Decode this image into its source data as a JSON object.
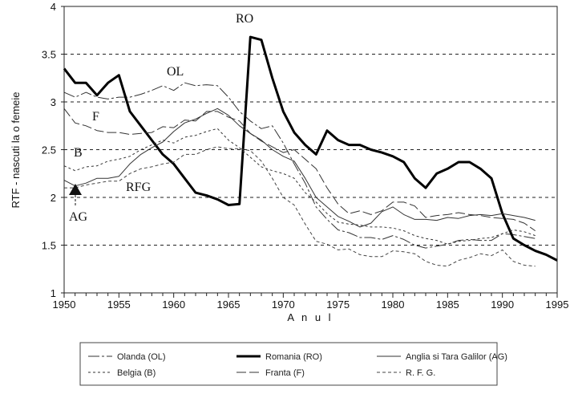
{
  "chart_data": {
    "type": "line",
    "title": "",
    "xlabel": "A n u l",
    "ylabel": "RTF - nascuti la o femeie",
    "xlim": [
      1950,
      1995
    ],
    "ylim": [
      1,
      4
    ],
    "x_ticks": [
      "1950",
      "1955",
      "1960",
      "1965",
      "1970",
      "1975",
      "1980",
      "1985",
      "1990",
      "1995"
    ],
    "y_ticks": [
      "1",
      "1.5",
      "2",
      "2.5",
      "3",
      "3.5",
      "4"
    ],
    "grid": "horizontal dashed",
    "legend_position": "bottom",
    "x_start": 1950,
    "series": [
      {
        "name": "Olanda (OL)",
        "label": "OL",
        "style": "dashlong",
        "values": [
          3.1,
          3.05,
          3.1,
          3.05,
          3.03,
          3.05,
          3.05,
          3.08,
          3.12,
          3.17,
          3.12,
          3.2,
          3.17,
          3.18,
          3.17,
          3.05,
          2.9,
          2.8,
          2.72,
          2.75,
          2.57,
          2.35,
          2.15,
          1.9,
          1.77,
          1.66,
          1.63,
          1.58,
          1.58,
          1.56,
          1.6,
          1.56,
          1.5,
          1.47,
          1.49,
          1.51,
          1.55,
          1.56,
          1.55,
          1.55,
          1.62,
          1.61,
          1.59,
          1.57
        ]
      },
      {
        "name": "Romania (RO)",
        "label": "RO",
        "style": "thick",
        "values": [
          3.35,
          3.2,
          3.2,
          3.07,
          3.2,
          3.28,
          2.9,
          2.75,
          2.6,
          2.45,
          2.35,
          2.2,
          2.05,
          2.02,
          1.98,
          1.92,
          1.93,
          3.68,
          3.65,
          3.25,
          2.9,
          2.68,
          2.55,
          2.45,
          2.7,
          2.6,
          2.55,
          2.55,
          2.5,
          2.47,
          2.43,
          2.37,
          2.2,
          2.1,
          2.25,
          2.3,
          2.37,
          2.37,
          2.3,
          2.2,
          1.83,
          1.57,
          1.5,
          1.44,
          1.4,
          1.34
        ]
      },
      {
        "name": "Anglia si Tara Galilor (AG)",
        "label": "AG",
        "style": "solid",
        "values": [
          2.18,
          2.12,
          2.15,
          2.2,
          2.2,
          2.22,
          2.35,
          2.45,
          2.52,
          2.58,
          2.69,
          2.78,
          2.82,
          2.88,
          2.93,
          2.86,
          2.75,
          2.67,
          2.6,
          2.5,
          2.43,
          2.38,
          2.2,
          2.0,
          1.9,
          1.8,
          1.75,
          1.69,
          1.73,
          1.85,
          1.9,
          1.82,
          1.77,
          1.77,
          1.76,
          1.79,
          1.78,
          1.81,
          1.82,
          1.81,
          1.83,
          1.81,
          1.79,
          1.76
        ]
      },
      {
        "name": "Belgia (B)",
        "label": "B",
        "style": "dotted",
        "values": [
          2.33,
          2.28,
          2.32,
          2.33,
          2.38,
          2.4,
          2.43,
          2.5,
          2.55,
          2.6,
          2.57,
          2.63,
          2.65,
          2.69,
          2.72,
          2.6,
          2.52,
          2.42,
          2.32,
          2.28,
          2.25,
          2.2,
          2.05,
          1.95,
          1.83,
          1.74,
          1.72,
          1.71,
          1.69,
          1.69,
          1.68,
          1.65,
          1.6,
          1.57,
          1.55,
          1.51,
          1.54,
          1.55,
          1.57,
          1.58,
          1.62,
          1.66,
          1.64,
          1.6
        ]
      },
      {
        "name": "Franta (F)",
        "label": "F",
        "style": "dashlong2",
        "values": [
          2.93,
          2.78,
          2.75,
          2.7,
          2.68,
          2.68,
          2.66,
          2.67,
          2.68,
          2.74,
          2.73,
          2.81,
          2.8,
          2.9,
          2.9,
          2.84,
          2.8,
          2.67,
          2.59,
          2.53,
          2.47,
          2.5,
          2.4,
          2.3,
          2.1,
          1.93,
          1.83,
          1.86,
          1.82,
          1.86,
          1.95,
          1.95,
          1.91,
          1.79,
          1.81,
          1.82,
          1.84,
          1.82,
          1.81,
          1.79,
          1.78,
          1.77,
          1.73,
          1.65
        ]
      },
      {
        "name": "R. F. G.",
        "label": "RFG",
        "style": "dotted2",
        "values": [
          2.1,
          2.1,
          2.13,
          2.15,
          2.17,
          2.17,
          2.25,
          2.3,
          2.32,
          2.35,
          2.37,
          2.45,
          2.45,
          2.5,
          2.53,
          2.51,
          2.51,
          2.49,
          2.38,
          2.2,
          2.0,
          1.92,
          1.72,
          1.54,
          1.51,
          1.45,
          1.46,
          1.4,
          1.38,
          1.38,
          1.44,
          1.43,
          1.41,
          1.33,
          1.29,
          1.28,
          1.34,
          1.37,
          1.41,
          1.39,
          1.45,
          1.33,
          1.29,
          1.28
        ]
      }
    ]
  }
}
